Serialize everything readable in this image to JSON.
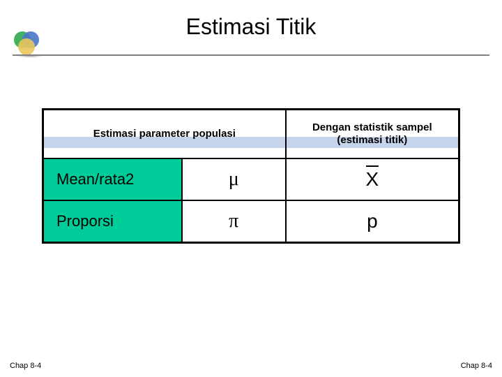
{
  "title": "Estimasi Titik",
  "table": {
    "headers": {
      "left": "Estimasi parameter populasi",
      "right_line1": "Dengan statistik sampel",
      "right_line2": "(estimasi titik)"
    },
    "rows": [
      {
        "label": "Mean/rata2",
        "pop_symbol": "μ",
        "stat_symbol": "X",
        "stat_bar": true
      },
      {
        "label": "Proporsi",
        "pop_symbol": "π",
        "stat_symbol": "p",
        "stat_bar": false
      }
    ]
  },
  "colors": {
    "label_bg": "#00cc99",
    "header_stripe": "#c5d4ea",
    "separator": "#808080",
    "logo_green": "#2fa84f",
    "logo_blue": "#4a76c9",
    "logo_yellow": "#e8c65a"
  },
  "footer": {
    "left": "Chap 8-4",
    "right": "Chap 8-4"
  }
}
